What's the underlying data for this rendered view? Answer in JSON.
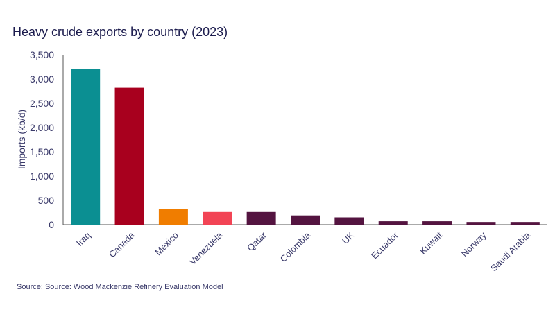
{
  "chart_data": {
    "type": "bar",
    "title": "Heavy crude exports by country (2023)",
    "xlabel": "",
    "ylabel": "Imports (kb/d)",
    "ylim": [
      0,
      3500
    ],
    "yticks": [
      "0",
      "500",
      "1,000",
      "1,500",
      "2,000",
      "2,500",
      "3,000",
      "3,500"
    ],
    "grid": false,
    "categories": [
      "Iraq",
      "Canada",
      "Mexico",
      "Venezuela",
      "Qatar",
      "Colombia",
      "UK",
      "Ecuador",
      "Kuwait",
      "Norway",
      "Saudi Arabia"
    ],
    "values": [
      3210,
      2820,
      320,
      260,
      260,
      190,
      150,
      70,
      70,
      55,
      55
    ],
    "colors": [
      "#0b8f92",
      "#a8001e",
      "#f07d00",
      "#f24455",
      "#541440",
      "#541440",
      "#541440",
      "#541440",
      "#541440",
      "#541440",
      "#541440"
    ],
    "source": "Source: Source: Wood Mackenzie Refinery Evaluation Model"
  }
}
